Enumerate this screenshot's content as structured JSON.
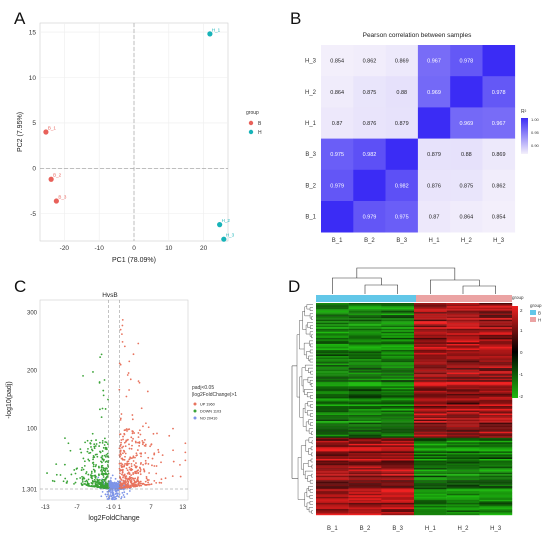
{
  "panels": {
    "A": {
      "letter": "A"
    },
    "B": {
      "letter": "B"
    },
    "C": {
      "letter": "C"
    },
    "D": {
      "letter": "D"
    }
  },
  "chart_data": [
    {
      "id": "A",
      "type": "scatter",
      "xlabel": "PC1 (78.09%)",
      "ylabel": "PC2 (7.95%)",
      "xlim": [
        -27,
        27
      ],
      "ylim": [
        -8,
        16
      ],
      "xticks": [
        -20,
        -10,
        0,
        10,
        20
      ],
      "yticks": [
        15,
        10,
        5,
        0,
        -5
      ],
      "grid": true,
      "legend": {
        "title": "group",
        "placement": "right",
        "entries": [
          "B",
          "H"
        ]
      },
      "colors": {
        "B": "#e8615a",
        "H": "#17b3b8"
      },
      "series": [
        {
          "name": "B",
          "points": [
            {
              "label": "B_1",
              "x": -25.3,
              "y": 4.0
            },
            {
              "label": "B_2",
              "x": -23.8,
              "y": -1.2
            },
            {
              "label": "B_3",
              "x": -22.3,
              "y": -3.6
            }
          ]
        },
        {
          "name": "H",
          "points": [
            {
              "label": "H_1",
              "x": 21.8,
              "y": 14.8
            },
            {
              "label": "H_2",
              "x": 24.6,
              "y": -6.2
            },
            {
              "label": "H_3",
              "x": 25.8,
              "y": -7.8
            }
          ]
        }
      ]
    },
    {
      "id": "B",
      "type": "heatmap",
      "title": "Pearson correlation between samples",
      "rows": [
        "H_3",
        "H_2",
        "H_1",
        "B_3",
        "B_2",
        "B_1"
      ],
      "cols": [
        "B_1",
        "B_2",
        "B_3",
        "H_1",
        "H_2",
        "H_3"
      ],
      "values": [
        [
          0.854,
          0.862,
          0.869,
          0.967,
          0.978,
          1.0
        ],
        [
          0.864,
          0.875,
          0.88,
          0.969,
          1.0,
          0.978
        ],
        [
          0.87,
          0.876,
          0.879,
          1.0,
          0.969,
          0.967
        ],
        [
          0.975,
          0.982,
          1.0,
          0.879,
          0.88,
          0.869
        ],
        [
          0.979,
          1.0,
          0.982,
          0.876,
          0.875,
          0.862
        ],
        [
          1.0,
          0.979,
          0.975,
          0.87,
          0.864,
          0.854
        ]
      ],
      "legend": {
        "title": "R²",
        "ticks": [
          "1.00",
          "0.95",
          "0.90"
        ],
        "range": [
          0.85,
          1.0
        ]
      },
      "colors": {
        "low": "#f4f0fb",
        "high": "#3b2cf5"
      }
    },
    {
      "id": "C",
      "type": "scatter",
      "xlabel": "log2FoldChange",
      "ylabel": "-log10(padj)",
      "xlim": [
        -14,
        14
      ],
      "ylim": [
        0,
        318
      ],
      "xticks": [
        "-13",
        "-7",
        "-1",
        "0",
        "1",
        "7",
        "13"
      ],
      "yticks": [
        "300",
        "200",
        "100",
        "1.301"
      ],
      "gene_label": "HvsB",
      "legend": {
        "title_line1": "padj<0.05",
        "title_line2": "|log2FoldChange|>1",
        "entries": [
          {
            "label": "UP 1960",
            "color": "#e8735e"
          },
          {
            "label": "DOWN 1103",
            "color": "#3aa337"
          },
          {
            "label": "NO 20410",
            "color": "#7d94e8"
          }
        ]
      },
      "thresholds": {
        "log2fc": [
          -1,
          1
        ],
        "padj_line": 1.301
      }
    },
    {
      "id": "D",
      "type": "heatmap",
      "cols": [
        "B_1",
        "B_2",
        "B_3",
        "H_1",
        "H_2",
        "H_3"
      ],
      "legend": {
        "title": "group",
        "entries": [
          {
            "label": "B",
            "color": "#62c7e8"
          },
          {
            "label": "H",
            "color": "#eba3a3"
          }
        ],
        "scale_ticks": [
          "2",
          "1",
          "0",
          "-1",
          "-2"
        ],
        "group_label": "group"
      },
      "colors": {
        "low": "#1fbb10",
        "mid": "#000000",
        "high": "#ee2020"
      }
    }
  ]
}
